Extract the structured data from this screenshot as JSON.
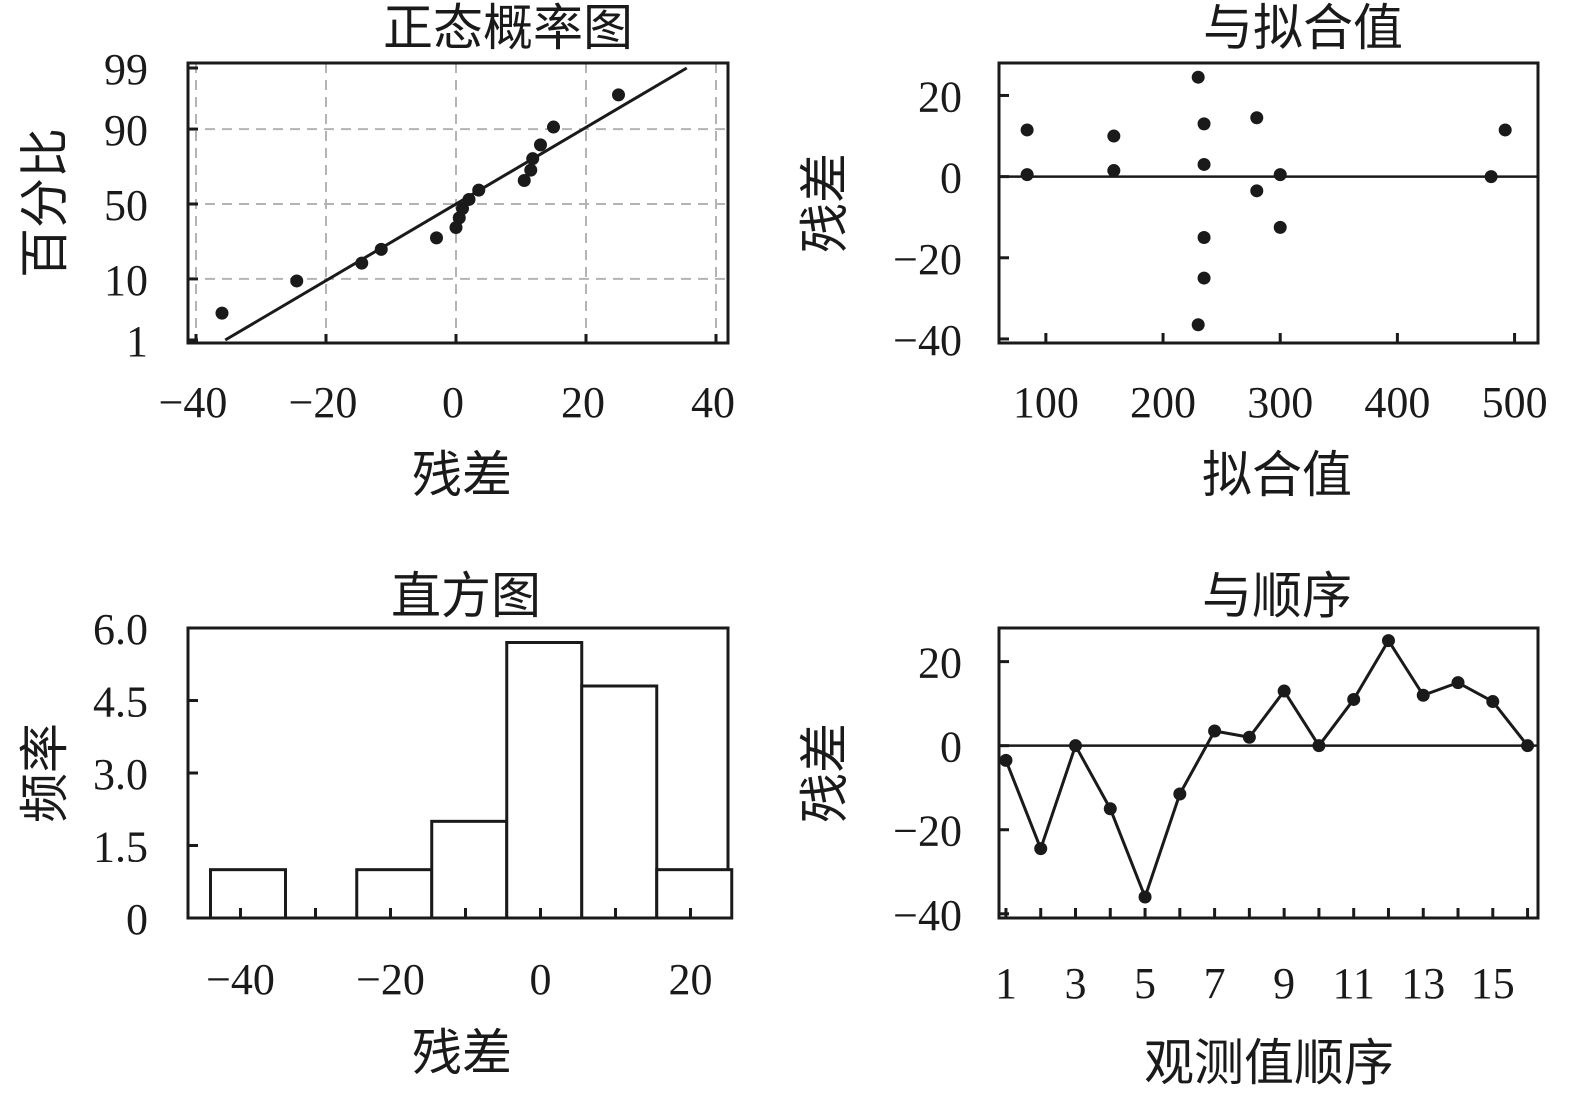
{
  "chart_data": [
    {
      "id": "normal",
      "type": "scatter",
      "title": "正态概率图",
      "xlabel": "残差",
      "ylabel": "百分比",
      "xlim": [
        -40,
        40
      ],
      "x_ticks": [
        -40,
        -20,
        0,
        20,
        40
      ],
      "x_tick_labels": [
        "−40",
        "−20",
        "0",
        "20",
        "40"
      ],
      "y_scale": "normal-probability",
      "y_ticks": [
        1,
        10,
        50,
        90,
        99
      ],
      "y_tick_labels": [
        "1",
        "10",
        "50",
        "90",
        "99"
      ],
      "grid": true,
      "fit_line": [
        [
          -35.5,
          1
        ],
        [
          35.5,
          99
        ]
      ],
      "points": [
        {
          "x": -36,
          "y": 3.1
        },
        {
          "x": -24.5,
          "y": 9.4
        },
        {
          "x": -14.5,
          "y": 15.6
        },
        {
          "x": -11.5,
          "y": 21.9
        },
        {
          "x": -3,
          "y": 28.1
        },
        {
          "x": 0,
          "y": 34.4
        },
        {
          "x": 0.5,
          "y": 40.6
        },
        {
          "x": 1,
          "y": 46.9
        },
        {
          "x": 2,
          "y": 53.1
        },
        {
          "x": 3.5,
          "y": 59.4
        },
        {
          "x": 10.5,
          "y": 65.6
        },
        {
          "x": 11.5,
          "y": 71.9
        },
        {
          "x": 11.8,
          "y": 78.1
        },
        {
          "x": 13,
          "y": 84.4
        },
        {
          "x": 15,
          "y": 90.6
        },
        {
          "x": 25,
          "y": 96.9
        }
      ]
    },
    {
      "id": "fitted",
      "type": "scatter",
      "title": "与拟合值",
      "xlabel": "拟合值",
      "ylabel": "残差",
      "xlim": [
        60,
        520
      ],
      "x_ticks": [
        100,
        200,
        300,
        400,
        500
      ],
      "x_tick_labels": [
        "100",
        "200",
        "300",
        "400",
        "500"
      ],
      "ylim": [
        -41,
        28
      ],
      "y_ticks": [
        -40,
        -20,
        0,
        20
      ],
      "y_tick_labels": [
        "−40",
        "−20",
        "0",
        "20"
      ],
      "grid": false,
      "reference_line": 0,
      "points": [
        {
          "x": 84,
          "y": 11.5
        },
        {
          "x": 84,
          "y": 0.5
        },
        {
          "x": 158,
          "y": 10
        },
        {
          "x": 158,
          "y": 1.5
        },
        {
          "x": 230,
          "y": 24.5
        },
        {
          "x": 235,
          "y": 13
        },
        {
          "x": 235,
          "y": 3
        },
        {
          "x": 235,
          "y": -15
        },
        {
          "x": 235,
          "y": -25
        },
        {
          "x": 230,
          "y": -36.5
        },
        {
          "x": 280,
          "y": 14.5
        },
        {
          "x": 280,
          "y": -3.5
        },
        {
          "x": 300,
          "y": 0.5
        },
        {
          "x": 300,
          "y": -12.5
        },
        {
          "x": 480,
          "y": 0
        },
        {
          "x": 492,
          "y": 11.5
        }
      ]
    },
    {
      "id": "histogram",
      "type": "bar",
      "title": "直方图",
      "xlabel": "残差",
      "ylabel": "频率",
      "xlim": [
        -47,
        25
      ],
      "x_ticks": [
        -40,
        -20,
        0,
        20
      ],
      "x_tick_labels": [
        "−40",
        "−20",
        "0",
        "20"
      ],
      "ylim": [
        0,
        6
      ],
      "y_ticks": [
        0,
        1.5,
        3.0,
        4.5,
        6.0
      ],
      "y_tick_labels": [
        "0",
        "1.5",
        "3.0",
        "4.5",
        "6.0"
      ],
      "minor_x_ticks": [
        -30,
        -10,
        10
      ],
      "bins": [
        {
          "from": -44,
          "to": -34,
          "count": 1
        },
        {
          "from": -34,
          "to": -24.5,
          "count": 0
        },
        {
          "from": -24.5,
          "to": -14.5,
          "count": 1
        },
        {
          "from": -14.5,
          "to": -4.5,
          "count": 2
        },
        {
          "from": -4.5,
          "to": 5.5,
          "count": 5.7
        },
        {
          "from": 5.5,
          "to": 15.5,
          "count": 4.8
        },
        {
          "from": 15.5,
          "to": 25.5,
          "count": 1
        }
      ]
    },
    {
      "id": "order",
      "type": "line",
      "title": "与顺序",
      "xlabel": "观测值顺序",
      "ylabel": "残差",
      "xlim": [
        0.8,
        16.3
      ],
      "x_ticks": [
        1,
        2,
        3,
        4,
        5,
        6,
        7,
        8,
        9,
        10,
        11,
        12,
        13,
        14,
        15,
        16
      ],
      "x_tick_labeled": [
        1,
        3,
        5,
        7,
        9,
        11,
        13,
        15
      ],
      "x_tick_labels": [
        "1",
        "3",
        "5",
        "7",
        "9",
        "11",
        "13",
        "15"
      ],
      "ylim": [
        -41,
        28
      ],
      "y_ticks": [
        -40,
        -20,
        0,
        20
      ],
      "y_tick_labels": [
        "−40",
        "−20",
        "0",
        "20"
      ],
      "reference_line": 0,
      "x": [
        1,
        2,
        3,
        4,
        5,
        6,
        7,
        8,
        9,
        10,
        11,
        12,
        13,
        14,
        15,
        16
      ],
      "y": [
        -3.5,
        -24.5,
        0,
        -15,
        -36,
        -11.5,
        3.5,
        2,
        13,
        0,
        11,
        25,
        12,
        15,
        10.5,
        0
      ]
    }
  ]
}
